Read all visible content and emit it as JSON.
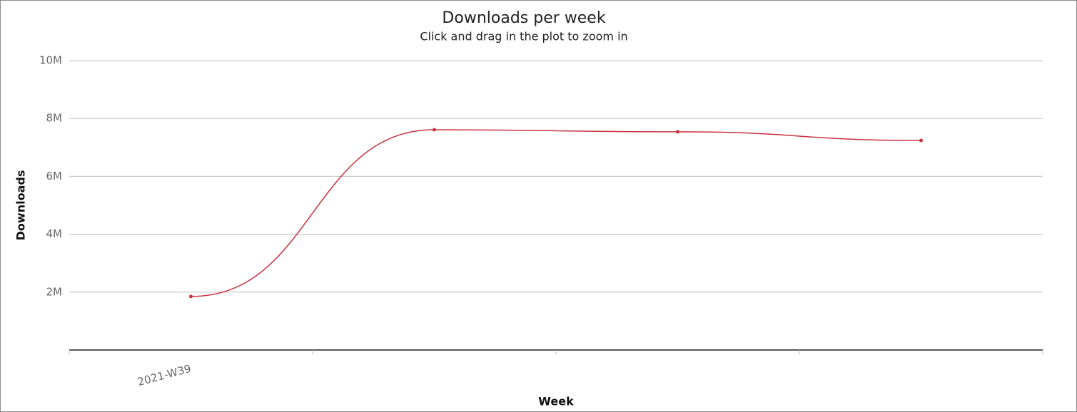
{
  "chart_data": {
    "type": "line",
    "title": "Downloads per week",
    "subtitle": "Click and drag in the plot to zoom in",
    "x_label": "Week",
    "y_label": "Downloads",
    "categories": [
      "2021-W39",
      null,
      null,
      null
    ],
    "series": [
      {
        "name": "Downloads",
        "color": "#c8323c",
        "values": [
          1850000,
          7610000,
          7540000,
          7240000
        ]
      }
    ],
    "ylim": [
      0,
      10000000
    ],
    "yticks": [
      {
        "value": 2000000,
        "label": "2M"
      },
      {
        "value": 4000000,
        "label": "4M"
      },
      {
        "value": 6000000,
        "label": "6M"
      },
      {
        "value": 8000000,
        "label": "8M"
      },
      {
        "value": 10000000,
        "label": "10M"
      }
    ],
    "grid": true,
    "smooth": true
  }
}
